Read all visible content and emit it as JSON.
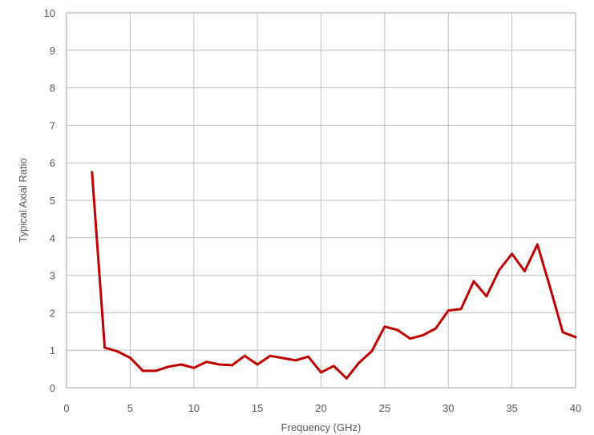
{
  "chart_data": {
    "type": "line",
    "title": "",
    "xlabel": "Frequency (GHz)",
    "ylabel": "Typical Axial Ratio",
    "xlim": [
      0,
      40
    ],
    "ylim": [
      0,
      10
    ],
    "x_ticks": [
      0,
      5,
      10,
      15,
      20,
      25,
      30,
      35,
      40
    ],
    "y_ticks": [
      0,
      1,
      2,
      3,
      4,
      5,
      6,
      7,
      8,
      9,
      10
    ],
    "grid": true,
    "legend": "none",
    "series": [
      {
        "color": "#C00000",
        "x": [
          2,
          3,
          4,
          5,
          6,
          7,
          8,
          9,
          10,
          11,
          12,
          13,
          14,
          15,
          16,
          17,
          18,
          19,
          20,
          21,
          22,
          23,
          24,
          25,
          26,
          27,
          28,
          29,
          30,
          31,
          32,
          33,
          34,
          35,
          36,
          37,
          38,
          39,
          40
        ],
        "y": [
          5.75,
          1.07,
          0.97,
          0.8,
          0.45,
          0.45,
          0.56,
          0.62,
          0.53,
          0.69,
          0.62,
          0.6,
          0.85,
          0.62,
          0.85,
          0.79,
          0.73,
          0.83,
          0.41,
          0.58,
          0.25,
          0.67,
          0.98,
          1.63,
          1.54,
          1.31,
          1.4,
          1.58,
          2.06,
          2.1,
          2.84,
          2.44,
          3.14,
          3.57,
          3.11,
          3.82,
          2.67,
          1.48,
          1.35
        ]
      }
    ]
  }
}
